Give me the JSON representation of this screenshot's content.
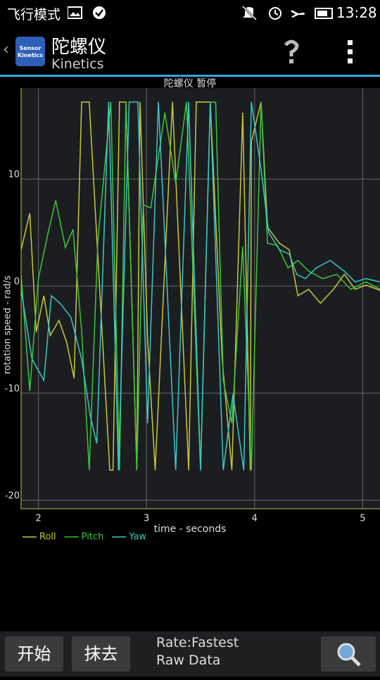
{
  "status_bar": {
    "mode": "飞行模式",
    "time": "13:28"
  },
  "app_bar": {
    "title": "陀螺仪",
    "subtitle": "Kinetics",
    "icon_text": "Sensor Kinetics"
  },
  "chart_data": {
    "type": "line",
    "title": "陀螺仪 暂停",
    "x_label": "time - seconds",
    "y_label": "rotation speed - rad/s",
    "xlim": [
      1.84,
      5.16
    ],
    "ylim": [
      -20.8,
      18.5
    ],
    "xticks": [
      2,
      3,
      4,
      5
    ],
    "yticks": [
      10,
      0,
      -10,
      -20
    ],
    "grid": true,
    "legend": "bottom-left",
    "series": [
      {
        "name": "Roll",
        "color": "#c8c83c",
        "x": [
          1.84,
          1.92,
          1.98,
          2.05,
          2.11,
          2.19,
          2.26,
          2.33,
          2.4,
          2.47,
          2.66,
          2.69,
          2.75,
          2.81,
          2.91,
          2.94,
          3.01,
          3.08,
          3.24,
          3.39,
          3.46,
          3.59,
          3.7,
          3.79,
          3.89,
          3.96,
          3.97,
          4.06,
          4.12,
          4.23,
          4.32,
          4.4,
          4.5,
          4.61,
          4.73,
          4.83,
          4.93,
          5.03,
          5.16
        ],
        "values": [
          3.4,
          6.8,
          -4.3,
          -0.9,
          -4.6,
          -3.2,
          -5.2,
          -8.6,
          17.2,
          17.2,
          -17.2,
          -17.2,
          17.2,
          17.2,
          -17.2,
          17.2,
          -4.9,
          -17.2,
          17.2,
          -17.2,
          17.2,
          17.2,
          -6.8,
          -17.2,
          16.2,
          -17.2,
          13.5,
          17.2,
          5.5,
          4.0,
          3.4,
          -0.9,
          -0.3,
          -1.6,
          -0.3,
          1.1,
          -0.3,
          0.1,
          -0.4
        ]
      },
      {
        "name": "Pitch",
        "color": "#3cc83c",
        "x": [
          1.84,
          1.92,
          2.0,
          2.09,
          2.16,
          2.25,
          2.32,
          2.4,
          2.47,
          2.55,
          2.67,
          2.75,
          2.81,
          2.91,
          2.97,
          3.04,
          3.17,
          3.27,
          3.37,
          3.5,
          3.59,
          3.64,
          3.71,
          3.79,
          3.89,
          3.97,
          4.06,
          4.12,
          4.21,
          4.31,
          4.4,
          4.5,
          4.63,
          4.76,
          4.89,
          5.03,
          5.16
        ],
        "values": [
          1,
          -9.8,
          0.7,
          5,
          8,
          3.6,
          5.3,
          -4.2,
          -17.2,
          4.3,
          17.2,
          -17.2,
          17.2,
          -17.2,
          7.6,
          7.3,
          16.2,
          9.6,
          17.2,
          -17.2,
          17.2,
          17.2,
          -8.8,
          -12.8,
          3.7,
          -17.2,
          17.2,
          4,
          3.8,
          1.7,
          2.4,
          1.4,
          0.7,
          1.1,
          -0.3,
          0.4,
          -0.3
        ]
      },
      {
        "name": "Yaw",
        "color": "#3cc8c8",
        "x": [
          1.84,
          1.94,
          2.05,
          2.12,
          2.2,
          2.3,
          2.4,
          2.48,
          2.54,
          2.65,
          2.74,
          2.84,
          2.92,
          3.01,
          3.11,
          3.27,
          3.39,
          3.5,
          3.59,
          3.71,
          3.8,
          3.9,
          3.97,
          4.06,
          4.13,
          4.23,
          4.32,
          4.39,
          4.47,
          4.57,
          4.7,
          4.83,
          4.93,
          5.03,
          5.16
        ],
        "values": [
          -0.3,
          -6.8,
          -8.8,
          -0.9,
          -1.6,
          -2.9,
          -6.8,
          -12.1,
          -14.7,
          17.2,
          -17.2,
          17.2,
          17.2,
          -12.8,
          17.2,
          -17.2,
          17.2,
          -17.2,
          17.2,
          -17.2,
          -10.1,
          -17.2,
          17.2,
          10.9,
          5,
          3.4,
          3,
          1.1,
          0.7,
          1.7,
          2.4,
          1.4,
          0.4,
          0.7,
          0.4
        ]
      }
    ]
  },
  "bottom_bar": {
    "buttons": [
      "开始",
      "抹去"
    ],
    "rate": "Rate:Fastest",
    "mode": "Raw Data"
  }
}
